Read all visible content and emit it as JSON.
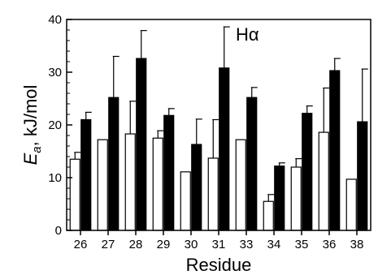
{
  "chart_data": {
    "type": "bar",
    "title": "",
    "annotation": "Hα",
    "xlabel": "Residue",
    "ylabel_italic": "E",
    "ylabel_subscript": "a",
    "ylabel_rest": ", kJ/mol",
    "ylim": [
      0,
      40
    ],
    "yticks": [
      0,
      10,
      20,
      30,
      40
    ],
    "yticks_text": [
      "0",
      "10",
      "20",
      "30",
      "40"
    ],
    "grid": false,
    "categories": [
      "26",
      "27",
      "28",
      "29",
      "30",
      "31",
      "33",
      "34",
      "35",
      "36",
      "38"
    ],
    "series": [
      {
        "fill": "#ffffff",
        "values": [
          13.5,
          17.2,
          18.3,
          17.5,
          11.1,
          13.7,
          17.2,
          5.5,
          12.0,
          18.6,
          9.7
        ],
        "err_up": [
          1.3,
          0,
          6.2,
          1.4,
          0,
          7.3,
          0,
          1.3,
          1.6,
          8.4,
          0
        ]
      },
      {
        "fill": "#000000",
        "values": [
          21.0,
          25.2,
          32.6,
          21.8,
          16.3,
          30.8,
          25.2,
          12.2,
          22.2,
          30.3,
          20.6
        ],
        "err_up": [
          1.4,
          7.8,
          5.3,
          1.3,
          4.8,
          7.8,
          1.9,
          0.6,
          1.4,
          2.3,
          10.0
        ]
      }
    ]
  }
}
